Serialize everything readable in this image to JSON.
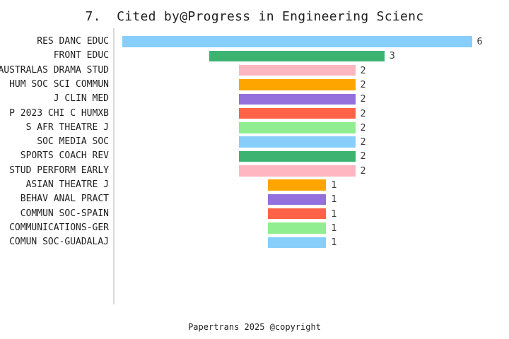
{
  "chart_data": {
    "type": "bar",
    "orientation": "horizontal-centered-funnel",
    "title": "7.  Cited by@Progress in Engineering Scienc",
    "categories": [
      "RES DANC EDUC",
      "FRONT EDUC",
      "AUSTRALAS DRAMA STUD",
      "HUM SOC SCI COMMUN",
      "J CLIN MED",
      "P 2023 CHI C HUMXB",
      "S AFR THEATRE J",
      "SOC MEDIA SOC",
      "SPORTS COACH REV",
      "STUD PERFORM EARLY",
      "ASIAN THEATRE J",
      "BEHAV ANAL PRACT",
      "COMMUN SOC-SPAIN",
      "COMMUNICATIONS-GER",
      "COMUN SOC-GUADALAJ"
    ],
    "values": [
      6,
      3,
      2,
      2,
      2,
      2,
      2,
      2,
      2,
      2,
      1,
      1,
      1,
      1,
      1
    ],
    "bar_colors": [
      "#87CEFA",
      "#3CB371",
      "#FFB6C1",
      "#FFA500",
      "#9370DB",
      "#FF6347",
      "#90EE90",
      "#87CEFA",
      "#3CB371",
      "#FFB6C1",
      "#FFA500",
      "#9370DB",
      "#FF6347",
      "#90EE90",
      "#87CEFA"
    ],
    "value_range": [
      0,
      6
    ],
    "grid": "off",
    "legend": "none",
    "axis_line_color": "#d8d8d8",
    "title_color": "#1f1f1f",
    "label_color": "#1f1f1f",
    "value_label_color": "#3a3a3a",
    "footer": "Papertrans 2025 @copyright"
  }
}
